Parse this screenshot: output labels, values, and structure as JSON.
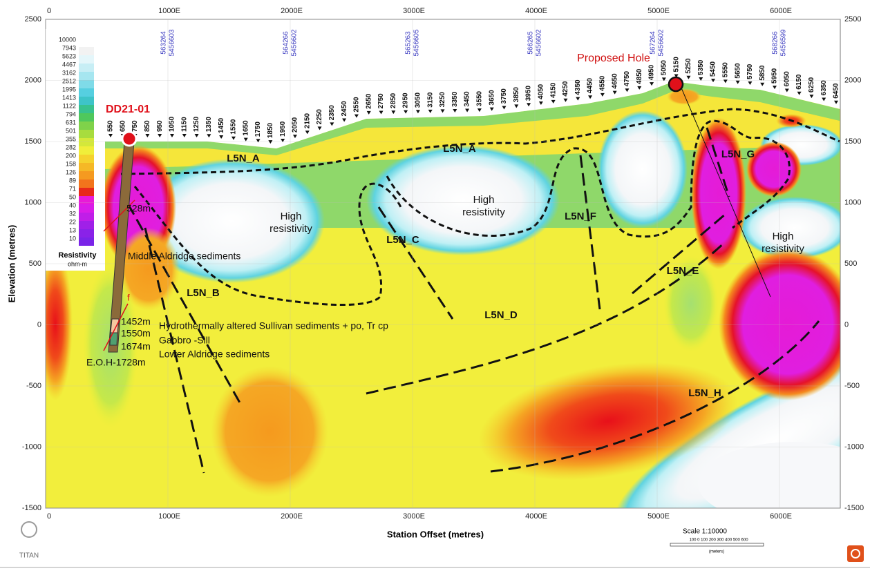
{
  "axes": {
    "x_title": "Station Offset (metres)",
    "y_title": "Elevation (metres)",
    "x_ticks": [
      "0",
      "1000E",
      "2000E",
      "3000E",
      "4000E",
      "5000E",
      "6000E"
    ],
    "y_ticks": [
      "2500",
      "2000",
      "1500",
      "1000",
      "500",
      "0",
      "-500",
      "-1000",
      "-1500"
    ]
  },
  "coordinates": [
    [
      "563264",
      "5456603"
    ],
    [
      "564266",
      "5456602"
    ],
    [
      "565263",
      "5456605"
    ],
    [
      "566265",
      "5456602"
    ],
    [
      "567264",
      "5456602"
    ],
    [
      "568266",
      "5456599"
    ]
  ],
  "legend": {
    "title": "Resistivity",
    "unit": "ohm-m",
    "values": [
      "10000",
      "7943",
      "5623",
      "4467",
      "3162",
      "2512",
      "1995",
      "1413",
      "1122",
      "794",
      "631",
      "501",
      "355",
      "282",
      "200",
      "158",
      "126",
      "89",
      "71",
      "50",
      "40",
      "32",
      "22",
      "13",
      "10"
    ]
  },
  "stations": [
    "550",
    "650",
    "750",
    "850",
    "950",
    "1050",
    "1150",
    "1250",
    "1350",
    "1450",
    "1550",
    "1650",
    "1750",
    "1850",
    "1950",
    "2050",
    "2150",
    "2250",
    "2350",
    "2450",
    "2550",
    "2650",
    "2750",
    "2850",
    "2950",
    "3050",
    "3150",
    "3250",
    "3350",
    "3450",
    "3550",
    "3650",
    "3750",
    "3850",
    "3950",
    "4050",
    "4150",
    "4250",
    "4350",
    "4450",
    "4550",
    "4650",
    "4750",
    "4850",
    "4950",
    "5050",
    "5150",
    "5250",
    "5350",
    "5450",
    "5550",
    "5650",
    "5750",
    "5850",
    "5950",
    "6050",
    "6150",
    "6250",
    "6350",
    "6450"
  ],
  "zones": [
    "L5N_A",
    "L5N_A",
    "L5N_B",
    "L5N_C",
    "L5N_D",
    "L5N_E",
    "L5N_F",
    "L5N_G",
    "L5N_H"
  ],
  "high_resistivity": [
    {
      "line1": "High",
      "line2": "resistivity"
    },
    {
      "line1": "High",
      "line2": "resistivity"
    },
    {
      "line1": "High",
      "line2": "resistivity"
    }
  ],
  "drill_hole": {
    "name": "DD21-01",
    "depths": [
      "528m",
      "1452m",
      "1550m",
      "1674m"
    ],
    "end": "E.O.H-1728m",
    "fault": "f",
    "units": [
      "Middle Aldridge sediments",
      "Hydrothermally altered Sullivan sediments + po, Tr cp",
      "Gabbro -Sill",
      "Lower Aldridge sediments"
    ]
  },
  "proposed_hole": "Proposed Hole",
  "scale": {
    "title": "Scale 1:10000",
    "ticks": "100  0  100  200  300  400  500  600",
    "unit": "(meters)"
  },
  "logo": "TITAN"
}
